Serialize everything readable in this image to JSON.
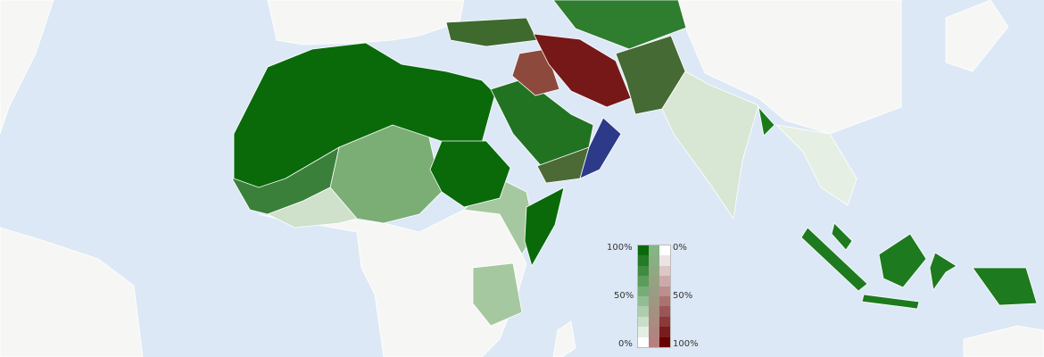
{
  "map": {
    "colors": {
      "ocean": "#dce8f6",
      "land_none": "#f6f7f5",
      "green_100": "#0a6a0a",
      "green_80": "#2f7d2f",
      "green_50": "#8fbb8a",
      "green_20": "#cfe0cb",
      "olive": "#4b6a35",
      "red_100": "#761818",
      "red_mid": "#8d4a3c",
      "blue": "#2d3a8a"
    },
    "regions": [
      {
        "name": "europe",
        "color": "#f6f7f5"
      },
      {
        "name": "north-africa",
        "color": "#0a6a0a"
      },
      {
        "name": "west-africa",
        "color": "#3a803a"
      },
      {
        "name": "sahel",
        "color": "#7aae74"
      },
      {
        "name": "sudan",
        "color": "#0a6a0a"
      },
      {
        "name": "somalia",
        "color": "#0a6a0a"
      },
      {
        "name": "arabia",
        "color": "#217321"
      },
      {
        "name": "yemen",
        "color": "#4b6a35"
      },
      {
        "name": "oman",
        "color": "#2d3a8a"
      },
      {
        "name": "iran",
        "color": "#761818"
      },
      {
        "name": "iraq",
        "color": "#8d4a3c"
      },
      {
        "name": "turkey",
        "color": "#3e6a2e"
      },
      {
        "name": "afghanistan-pakistan",
        "color": "#456a33"
      },
      {
        "name": "central-asia",
        "color": "#2f7d2f"
      },
      {
        "name": "india",
        "color": "#d8e6d4"
      },
      {
        "name": "bangladesh",
        "color": "#1a7a1a"
      },
      {
        "name": "indonesia-malaysia",
        "color": "#1e7a1e"
      }
    ]
  },
  "legend": {
    "left_top": "100%",
    "left_mid": "50%",
    "left_bottom": "0%",
    "right_top": "0%",
    "right_mid": "50%",
    "right_bottom": "100%",
    "green_max": "#0a6a0a",
    "red_max": "#6a0000"
  }
}
